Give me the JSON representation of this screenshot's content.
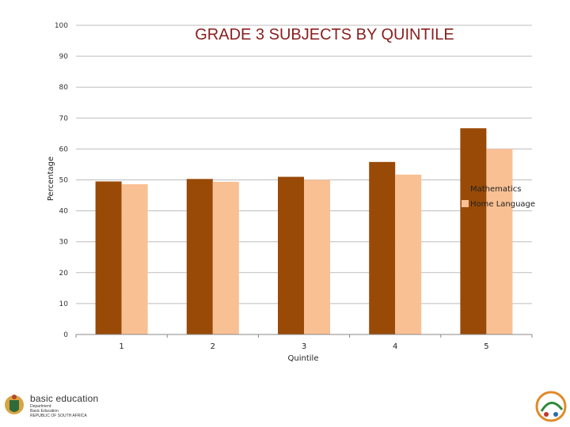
{
  "chart_data": {
    "type": "bar",
    "title": "GRADE 3 SUBJECTS BY QUINTILE",
    "xlabel": "Quintile",
    "ylabel": "Percentage",
    "categories": [
      "1",
      "2",
      "3",
      "4",
      "5"
    ],
    "ylim": [
      0,
      100
    ],
    "yticks": [
      "0",
      "10",
      "20",
      "30",
      "40",
      "50",
      "60",
      "70",
      "80",
      "90",
      "100"
    ],
    "grid": true,
    "legend_position": "right",
    "series": [
      {
        "name": "Mathematics",
        "color": "#994a07",
        "values": [
          49.5,
          50.3,
          51.0,
          55.8,
          66.7
        ]
      },
      {
        "name": "Home Language",
        "color": "#f9c094",
        "values": [
          48.6,
          49.4,
          50.0,
          51.7,
          60.0
        ]
      }
    ]
  },
  "branding": {
    "logo_name": "basic education",
    "logo_sub_1": "Department:",
    "logo_sub_2": "Basic Education",
    "logo_sub_3": "REPUBLIC OF SOUTH AFRICA"
  }
}
